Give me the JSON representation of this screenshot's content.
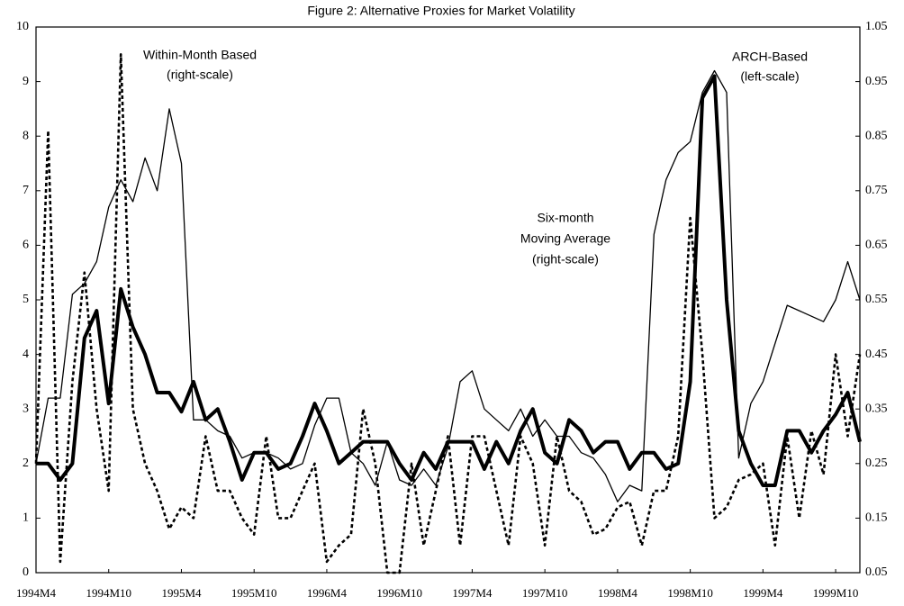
{
  "chart_data": {
    "type": "line",
    "title": "Figure 2: Alternative Proxies for Market Volatility",
    "categories": [
      "1994M4",
      null,
      null,
      null,
      null,
      null,
      "1994M10",
      null,
      null,
      null,
      null,
      null,
      "1995M4",
      null,
      null,
      null,
      null,
      null,
      "1995M10",
      null,
      null,
      null,
      null,
      null,
      "1996M4",
      null,
      null,
      null,
      null,
      null,
      "1996M10",
      null,
      null,
      null,
      null,
      null,
      "1997M4",
      null,
      null,
      null,
      null,
      null,
      "1997M10",
      null,
      null,
      null,
      null,
      null,
      "1998M4",
      null,
      null,
      null,
      null,
      null,
      "1998M10",
      null,
      null,
      null,
      null,
      null,
      "1999M4",
      null,
      null,
      null,
      null,
      null,
      "1999M10",
      null,
      null
    ],
    "ylim": [
      0,
      10
    ],
    "yticks": [
      0,
      1,
      2,
      3,
      4,
      5,
      6,
      7,
      8,
      9,
      10
    ],
    "y2lim": [
      0.05,
      1.05
    ],
    "y2ticks": [
      0.05,
      0.15,
      0.25,
      0.35,
      0.45,
      0.55,
      0.65,
      0.75,
      0.85,
      0.95,
      1.05
    ],
    "series": [
      {
        "name": "ARCH-Based",
        "color": "#000000",
        "line_style": "thick",
        "values": [
          2.0,
          2.0,
          1.7,
          2.0,
          4.3,
          4.8,
          3.1,
          5.2,
          4.5,
          4.0,
          3.3,
          3.3,
          2.95,
          3.5,
          2.8,
          3.0,
          2.4,
          1.7,
          2.2,
          2.2,
          1.9,
          2.0,
          2.5,
          3.1,
          2.6,
          2.0,
          2.2,
          2.4,
          2.4,
          2.4,
          2.0,
          1.7,
          2.2,
          1.9,
          2.4,
          2.4,
          2.4,
          1.9,
          2.4,
          2.0,
          2.6,
          3.0,
          2.2,
          2.0,
          2.8,
          2.6,
          2.2,
          2.4,
          2.4,
          1.9,
          2.2,
          2.2,
          1.9,
          2.0,
          3.5,
          8.7,
          9.1,
          5.0,
          2.6,
          2.0,
          1.6,
          1.6,
          2.6,
          2.6,
          2.2,
          2.6,
          2.9,
          3.3,
          2.4
        ]
      },
      {
        "name": "Within-Month Based",
        "color": "#000000",
        "line_style": "dotted",
        "axis": "y2",
        "values": [
          0.25,
          0.86,
          0.07,
          0.4,
          0.6,
          0.35,
          0.2,
          1.0,
          0.35,
          0.25,
          0.2,
          0.13,
          0.17,
          0.15,
          0.3,
          0.2,
          0.2,
          0.15,
          0.12,
          0.3,
          0.15,
          0.15,
          0.2,
          0.25,
          0.07,
          0.1,
          0.12,
          0.35,
          0.25,
          0.05,
          0.05,
          0.25,
          0.1,
          0.2,
          0.3,
          0.1,
          0.3,
          0.3,
          0.2,
          0.1,
          0.3,
          0.25,
          0.1,
          0.3,
          0.2,
          0.18,
          0.12,
          0.13,
          0.17,
          0.18,
          0.1,
          0.2,
          0.2,
          0.3,
          0.7,
          0.45,
          0.15,
          0.17,
          0.22,
          0.23,
          0.25,
          0.1,
          0.3,
          0.15,
          0.31,
          0.23,
          0.45,
          0.3,
          0.45
        ]
      },
      {
        "name": "Six-month Moving Average",
        "color": "#000000",
        "line_style": "thin",
        "axis": "y2",
        "values": [
          0.25,
          0.37,
          0.37,
          0.56,
          0.58,
          0.62,
          0.72,
          0.77,
          0.73,
          0.81,
          0.75,
          0.9,
          0.8,
          0.33,
          0.33,
          0.31,
          0.3,
          0.26,
          0.27,
          0.27,
          0.26,
          0.24,
          0.25,
          0.32,
          0.37,
          0.37,
          0.27,
          0.25,
          0.21,
          0.29,
          0.22,
          0.21,
          0.24,
          0.21,
          0.28,
          0.4,
          0.42,
          0.35,
          0.33,
          0.31,
          0.35,
          0.3,
          0.33,
          0.3,
          0.3,
          0.27,
          0.26,
          0.23,
          0.18,
          0.21,
          0.2,
          0.67,
          0.77,
          0.82,
          0.84,
          0.93,
          0.97,
          0.93,
          0.26,
          0.36,
          0.4,
          0.47,
          0.54,
          0.53,
          0.52,
          0.51,
          0.55,
          0.62,
          0.55
        ]
      }
    ],
    "annotations": [
      {
        "lines": [
          "Within-Month Based",
          "(right-scale)"
        ]
      },
      {
        "lines": [
          "ARCH-Based",
          "(left-scale)"
        ]
      },
      {
        "lines": [
          "Six-month",
          "Moving Average",
          "(right-scale)"
        ]
      }
    ]
  }
}
